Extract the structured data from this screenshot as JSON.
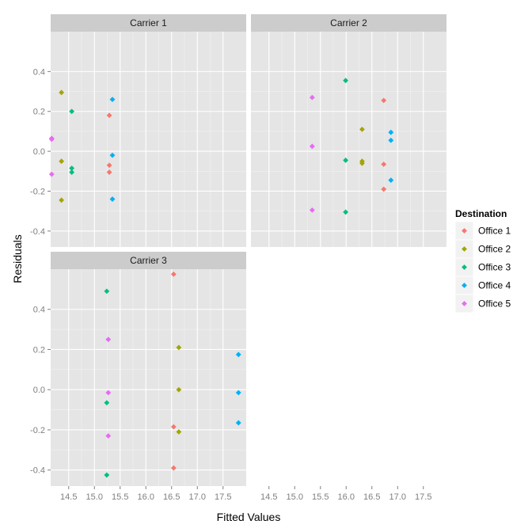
{
  "chart_data": {
    "type": "scatter",
    "xlabel": "Fitted Values",
    "ylabel": "Residuals",
    "x_ticks": [
      14.5,
      15.0,
      15.5,
      16.0,
      16.5,
      17.0,
      17.5
    ],
    "x_tick_labels": [
      "14.5",
      "15.0",
      "15.5",
      "16.0",
      "16.5",
      "17.0",
      "17.5"
    ],
    "y_ticks": [
      0.4,
      0.2,
      0.0,
      -0.2,
      -0.4
    ],
    "y_tick_labels": [
      "0.4",
      "0.2",
      "0.0",
      "-0.2",
      "-0.4"
    ],
    "xlim": [
      14.15,
      17.95
    ],
    "ylim": [
      -0.48,
      0.6
    ],
    "grid": true,
    "legend": {
      "title": "Destination",
      "position": "right",
      "entries": [
        {
          "name": "Office 1",
          "color": "#F8766D"
        },
        {
          "name": "Office 2",
          "color": "#A3A500"
        },
        {
          "name": "Office 3",
          "color": "#00BF7D"
        },
        {
          "name": "Office 4",
          "color": "#00B0F6"
        },
        {
          "name": "Office 5",
          "color": "#E76BF3"
        }
      ]
    },
    "panels": [
      {
        "title": "Carrier 1",
        "points": [
          {
            "series": "Office 1",
            "x": 15.29,
            "y": 0.18
          },
          {
            "series": "Office 1",
            "x": 15.29,
            "y": -0.07
          },
          {
            "series": "Office 1",
            "x": 15.29,
            "y": -0.105
          },
          {
            "series": "Office 2",
            "x": 14.36,
            "y": 0.295
          },
          {
            "series": "Office 2",
            "x": 14.36,
            "y": -0.05
          },
          {
            "series": "Office 2",
            "x": 14.36,
            "y": -0.245
          },
          {
            "series": "Office 3",
            "x": 14.56,
            "y": 0.2
          },
          {
            "series": "Office 3",
            "x": 14.56,
            "y": -0.085
          },
          {
            "series": "Office 3",
            "x": 14.56,
            "y": -0.105
          },
          {
            "series": "Office 4",
            "x": 15.35,
            "y": 0.26
          },
          {
            "series": "Office 4",
            "x": 15.35,
            "y": -0.02
          },
          {
            "series": "Office 4",
            "x": 15.35,
            "y": -0.24
          },
          {
            "series": "Office 5",
            "x": 14.17,
            "y": 0.065
          },
          {
            "series": "Office 5",
            "x": 14.17,
            "y": 0.06
          },
          {
            "series": "Office 5",
            "x": 14.17,
            "y": -0.115
          }
        ]
      },
      {
        "title": "Carrier 2",
        "points": [
          {
            "series": "Office 1",
            "x": 16.73,
            "y": 0.255
          },
          {
            "series": "Office 1",
            "x": 16.73,
            "y": -0.065
          },
          {
            "series": "Office 1",
            "x": 16.73,
            "y": -0.19
          },
          {
            "series": "Office 2",
            "x": 16.31,
            "y": 0.11
          },
          {
            "series": "Office 2",
            "x": 16.31,
            "y": -0.05
          },
          {
            "series": "Office 2",
            "x": 16.31,
            "y": -0.06
          },
          {
            "series": "Office 3",
            "x": 15.99,
            "y": 0.355
          },
          {
            "series": "Office 3",
            "x": 15.99,
            "y": -0.045
          },
          {
            "series": "Office 3",
            "x": 15.99,
            "y": -0.305
          },
          {
            "series": "Office 4",
            "x": 16.87,
            "y": 0.095
          },
          {
            "series": "Office 4",
            "x": 16.87,
            "y": 0.055
          },
          {
            "series": "Office 4",
            "x": 16.87,
            "y": -0.145
          },
          {
            "series": "Office 5",
            "x": 15.34,
            "y": 0.27
          },
          {
            "series": "Office 5",
            "x": 15.34,
            "y": 0.025
          },
          {
            "series": "Office 5",
            "x": 15.34,
            "y": -0.295
          }
        ]
      },
      {
        "title": "Carrier 3",
        "points": [
          {
            "series": "Office 1",
            "x": 16.54,
            "y": 0.575
          },
          {
            "series": "Office 1",
            "x": 16.54,
            "y": -0.185
          },
          {
            "series": "Office 1",
            "x": 16.54,
            "y": -0.39
          },
          {
            "series": "Office 2",
            "x": 16.64,
            "y": 0.21
          },
          {
            "series": "Office 2",
            "x": 16.64,
            "y": 0.0
          },
          {
            "series": "Office 2",
            "x": 16.64,
            "y": -0.21
          },
          {
            "series": "Office 3",
            "x": 15.24,
            "y": 0.49
          },
          {
            "series": "Office 3",
            "x": 15.24,
            "y": -0.065
          },
          {
            "series": "Office 3",
            "x": 15.24,
            "y": -0.425
          },
          {
            "series": "Office 4",
            "x": 17.8,
            "y": 0.175
          },
          {
            "series": "Office 4",
            "x": 17.8,
            "y": -0.015
          },
          {
            "series": "Office 4",
            "x": 17.8,
            "y": -0.165
          },
          {
            "series": "Office 5",
            "x": 15.27,
            "y": 0.25
          },
          {
            "series": "Office 5",
            "x": 15.27,
            "y": -0.015
          },
          {
            "series": "Office 5",
            "x": 15.27,
            "y": -0.23
          }
        ]
      }
    ]
  }
}
